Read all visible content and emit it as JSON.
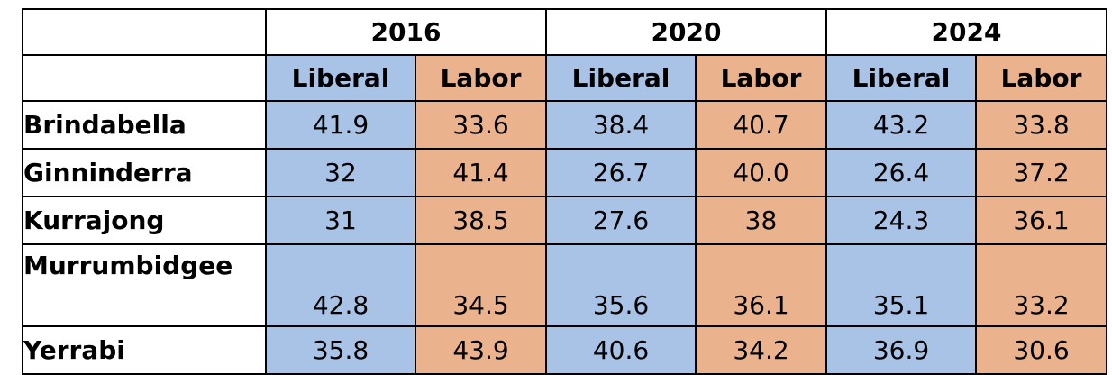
{
  "chart_data": {
    "type": "table",
    "years": [
      "2016",
      "2020",
      "2024"
    ],
    "parties": [
      "Liberal",
      "Labor"
    ],
    "rows": [
      {
        "name": "Brindabella",
        "values": [
          "41.9",
          "33.6",
          "38.4",
          "40.7",
          "43.2",
          "33.8"
        ]
      },
      {
        "name": "Ginninderra",
        "values": [
          "32",
          "41.4",
          "26.7",
          "40.0",
          "26.4",
          "37.2"
        ]
      },
      {
        "name": "Kurrajong",
        "values": [
          "31",
          "38.5",
          "27.6",
          "38",
          "24.3",
          "36.1"
        ]
      },
      {
        "name": "Murrumbidgee",
        "values": [
          "42.8",
          "34.5",
          "35.6",
          "36.1",
          "35.1",
          "33.2"
        ]
      },
      {
        "name": "Yerrabi",
        "values": [
          "35.8",
          "43.9",
          "40.6",
          "34.2",
          "36.9",
          "30.6"
        ]
      }
    ]
  },
  "colors": {
    "liberal": "#a9c3e6",
    "labor": "#eab28d"
  }
}
